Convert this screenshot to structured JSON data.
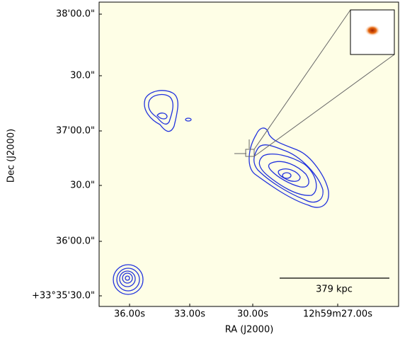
{
  "figure": {
    "xlabel": "RA (J2000)",
    "ylabel": "Dec (J2000)",
    "xticks": [
      "36.00s",
      "33.00s",
      "30.00s",
      "12h59m27.00s"
    ],
    "yticks": [
      "38'00.0\"",
      "30.0\"",
      "37'00.0\"",
      "30.0\"",
      "36'00.0\"",
      "+33°35'30.0\""
    ],
    "scalebar": "379 kpc"
  }
}
